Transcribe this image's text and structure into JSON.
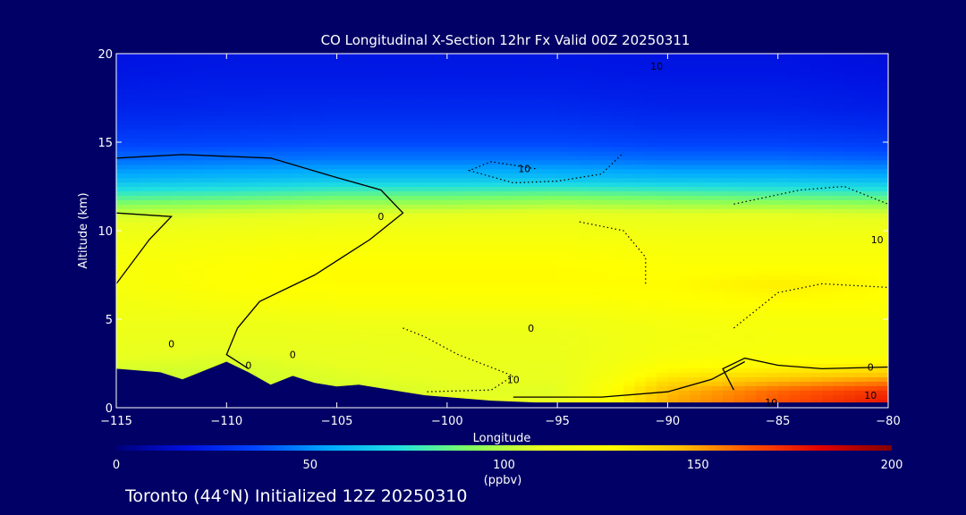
{
  "chart_data": {
    "type": "heatmap",
    "title": "CO Longitudinal X-Section 12hr  Fx Valid 00Z 20250311",
    "xlabel": "Longitude",
    "ylabel": "Altitude (km)",
    "xlim": [
      -115,
      -80
    ],
    "ylim": [
      0,
      20
    ],
    "x_ticks": [
      "-115",
      "-110",
      "-105",
      "-100",
      "-95",
      "-90",
      "-85",
      "-80"
    ],
    "y_ticks": [
      "0",
      "5",
      "10",
      "15",
      "20"
    ],
    "colorbar": {
      "range": [
        0,
        200
      ],
      "ticks": [
        "0",
        "50",
        "100",
        "150",
        "200"
      ],
      "unit": "(ppbv)",
      "colors": [
        "#00007a",
        "#0010e0",
        "#0048ff",
        "#00a8ff",
        "#20e0e0",
        "#80ff60",
        "#e8ff20",
        "#ffff00",
        "#ffc000",
        "#ff5000",
        "#e00000",
        "#800000"
      ]
    },
    "co_field": {
      "x": [
        -115,
        -110,
        -105,
        -100,
        -95,
        -90,
        -85,
        -80
      ],
      "y": [
        0,
        1,
        2,
        3,
        4,
        5,
        6,
        7,
        8,
        9,
        10,
        11,
        12,
        13,
        14,
        15,
        16,
        17,
        18,
        19,
        20
      ],
      "values": [
        [
          100,
          100,
          105,
          110,
          110,
          150,
          165,
          180
        ],
        [
          105,
          105,
          105,
          108,
          108,
          145,
          160,
          170
        ],
        [
          105,
          105,
          108,
          110,
          110,
          130,
          135,
          140
        ],
        [
          110,
          108,
          110,
          112,
          112,
          120,
          122,
          122
        ],
        [
          112,
          112,
          112,
          113,
          113,
          118,
          120,
          120
        ],
        [
          115,
          115,
          116,
          116,
          116,
          120,
          122,
          122
        ],
        [
          118,
          122,
          124,
          124,
          124,
          126,
          128,
          126
        ],
        [
          122,
          126,
          128,
          128,
          128,
          128,
          132,
          128
        ],
        [
          122,
          126,
          128,
          128,
          128,
          126,
          126,
          126
        ],
        [
          120,
          122,
          124,
          124,
          124,
          122,
          122,
          122
        ],
        [
          114,
          116,
          118,
          118,
          118,
          116,
          116,
          116
        ],
        [
          104,
          106,
          108,
          108,
          110,
          108,
          108,
          106
        ],
        [
          80,
          82,
          86,
          86,
          88,
          86,
          84,
          82
        ],
        [
          58,
          60,
          62,
          62,
          62,
          60,
          60,
          58
        ],
        [
          44,
          45,
          46,
          46,
          46,
          44,
          44,
          42
        ],
        [
          34,
          35,
          36,
          36,
          36,
          34,
          34,
          32
        ],
        [
          28,
          29,
          30,
          30,
          30,
          28,
          28,
          26
        ],
        [
          24,
          25,
          26,
          26,
          26,
          24,
          24,
          22
        ],
        [
          22,
          23,
          23,
          23,
          23,
          22,
          22,
          20
        ],
        [
          20,
          21,
          21,
          21,
          21,
          20,
          20,
          18
        ],
        [
          19,
          20,
          20,
          20,
          20,
          19,
          19,
          17
        ]
      ]
    },
    "terrain": {
      "x": [
        -115,
        -114,
        -113,
        -112,
        -111,
        -110,
        -109,
        -108,
        -107,
        -106,
        -105,
        -104,
        -103,
        -102,
        -101,
        -100,
        -99,
        -98,
        -97,
        -96,
        -95,
        -94,
        -93,
        -92,
        -91,
        -90,
        -89,
        -88,
        -87,
        -86,
        -85,
        -84,
        -83,
        -82,
        -81,
        -80
      ],
      "z": [
        2.2,
        2.1,
        2.0,
        1.6,
        2.1,
        2.6,
        2.0,
        1.3,
        1.8,
        1.4,
        1.2,
        1.3,
        1.1,
        0.9,
        0.7,
        0.6,
        0.5,
        0.4,
        0.35,
        0.3,
        0.3,
        0.3,
        0.3,
        0.3,
        0.3,
        0.3,
        0.3,
        0.3,
        0.3,
        0.3,
        0.3,
        0.3,
        0.3,
        0.3,
        0.3,
        0.3
      ]
    },
    "contour_labels": [
      {
        "text": "10",
        "x": -90.5,
        "y": 19.3
      },
      {
        "text": "10",
        "x": -96.5,
        "y": 13.5
      },
      {
        "text": "0",
        "x": -103.0,
        "y": 10.8
      },
      {
        "text": "10",
        "x": -80.5,
        "y": 9.5
      },
      {
        "text": "0",
        "x": -112.5,
        "y": 3.6
      },
      {
        "text": "0",
        "x": -109.0,
        "y": 2.4
      },
      {
        "text": "0",
        "x": -107.0,
        "y": 3.0
      },
      {
        "text": "0",
        "x": -96.2,
        "y": 4.5
      },
      {
        "text": "10",
        "x": -97.0,
        "y": 1.6
      },
      {
        "text": "0",
        "x": -80.8,
        "y": 2.3
      },
      {
        "text": "10",
        "x": -85.3,
        "y": 0.3
      },
      {
        "text": "10",
        "x": -80.8,
        "y": 0.7
      }
    ]
  },
  "footer": {
    "caption": "Toronto (44°N) Initialized 12Z 20250310"
  }
}
